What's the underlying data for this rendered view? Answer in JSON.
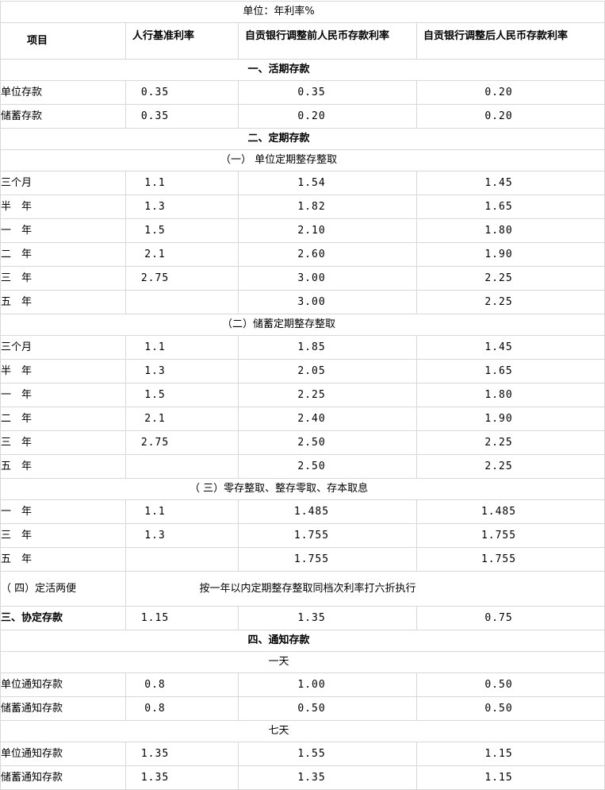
{
  "table": {
    "unit_label": "单位：年利率%",
    "columns": [
      "项目",
      "人行基准利率",
      "自贡银行调整前人民币存款利率",
      "自贡银行调整后人民币存款利率"
    ],
    "rows": [
      {
        "type": "section",
        "label": "一、活期存款"
      },
      {
        "type": "data",
        "label": "单位存款",
        "values": [
          "0.35",
          "0.35",
          "0.20"
        ]
      },
      {
        "type": "data",
        "label": "储蓄存款",
        "values": [
          "0.35",
          "0.20",
          "0.20"
        ]
      },
      {
        "type": "section",
        "label": "二、定期存款"
      },
      {
        "type": "subsection",
        "label": "（一） 单位定期整存整取"
      },
      {
        "type": "data",
        "label": "三个月",
        "values": [
          "1.1",
          "1.54",
          "1.45"
        ]
      },
      {
        "type": "data",
        "label": "半　年",
        "values": [
          "1.3",
          "1.82",
          "1.65"
        ]
      },
      {
        "type": "data",
        "label": "一　年",
        "values": [
          "1.5",
          "2.10",
          "1.80"
        ]
      },
      {
        "type": "data",
        "label": "二　年",
        "values": [
          "2.1",
          "2.60",
          "1.90"
        ]
      },
      {
        "type": "data",
        "label": "三　年",
        "values": [
          "2.75",
          "3.00",
          "2.25"
        ]
      },
      {
        "type": "data",
        "label": "五　年",
        "values": [
          "",
          "3.00",
          "2.25"
        ]
      },
      {
        "type": "subsection",
        "label": "（二）储蓄定期整存整取"
      },
      {
        "type": "data",
        "label": "三个月",
        "values": [
          "1.1",
          "1.85",
          "1.45"
        ]
      },
      {
        "type": "data",
        "label": "半　年",
        "values": [
          "1.3",
          "2.05",
          "1.65"
        ]
      },
      {
        "type": "data",
        "label": "一　年",
        "values": [
          "1.5",
          "2.25",
          "1.80"
        ]
      },
      {
        "type": "data",
        "label": "二　年",
        "values": [
          "2.1",
          "2.40",
          "1.90"
        ]
      },
      {
        "type": "data",
        "label": "三　年",
        "values": [
          "2.75",
          "2.50",
          "2.25"
        ]
      },
      {
        "type": "data",
        "label": "五　年",
        "values": [
          "",
          "2.50",
          "2.25"
        ]
      },
      {
        "type": "subsection",
        "label": "（ 三）零存整取、整存零取、存本取息"
      },
      {
        "type": "data",
        "label": "一　年",
        "values": [
          "1.1",
          "1.485",
          "1.485"
        ]
      },
      {
        "type": "data",
        "label": "三　年",
        "values": [
          "1.3",
          "1.755",
          "1.755"
        ]
      },
      {
        "type": "data",
        "label": "五　年",
        "values": [
          "",
          "1.755",
          "1.755"
        ]
      },
      {
        "type": "note",
        "label": "（ 四）定活两便",
        "note": "按一年以内定期整存整取同档次利率打六折执行"
      },
      {
        "type": "data",
        "bold": true,
        "label": "三、协定存款",
        "values": [
          "1.15",
          "1.35",
          "0.75"
        ]
      },
      {
        "type": "section",
        "label": "四、通知存款"
      },
      {
        "type": "subsection",
        "label": "一天"
      },
      {
        "type": "data",
        "label": "单位通知存款",
        "values": [
          "0.8",
          "1.00",
          "0.50"
        ]
      },
      {
        "type": "data",
        "label": "储蓄通知存款",
        "values": [
          "0.8",
          "0.50",
          "0.50"
        ]
      },
      {
        "type": "subsection",
        "label": "七天"
      },
      {
        "type": "data",
        "label": "单位通知存款",
        "values": [
          "1.35",
          "1.55",
          "1.15"
        ]
      },
      {
        "type": "data",
        "label": "储蓄通知存款",
        "values": [
          "1.35",
          "1.35",
          "1.15"
        ]
      }
    ]
  }
}
